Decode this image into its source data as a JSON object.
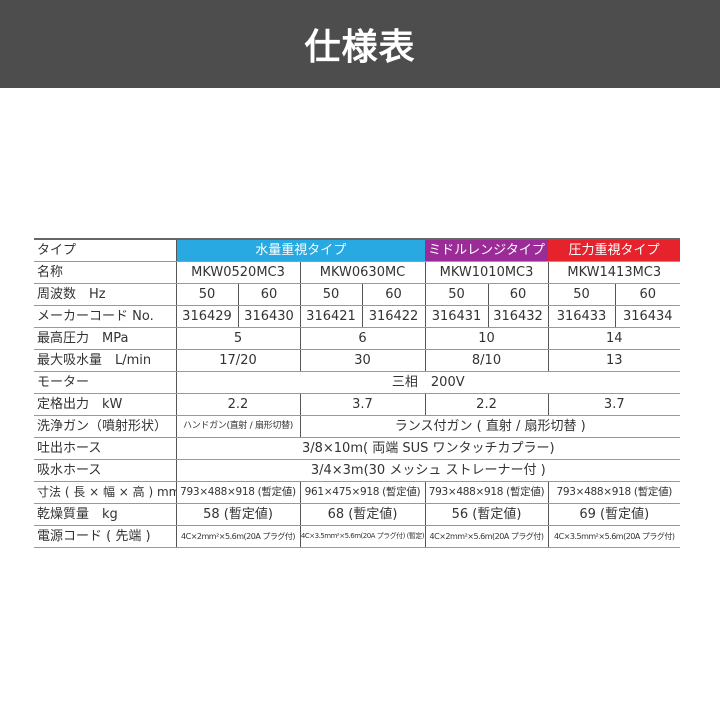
{
  "title": "仕様表",
  "colors": {
    "water": "#29a9e1",
    "middle": "#9a2b97",
    "pressure": "#e6232d",
    "header_bg": "#4d4d4d"
  },
  "rows": {
    "type": {
      "label": "タイプ",
      "water": "水量重視タイプ",
      "middle": "ミドルレンジタイプ",
      "pressure": "圧力重視タイプ"
    },
    "name": {
      "label": "名称",
      "values": [
        "MKW0520MC3",
        "MKW0630MC",
        "MKW1010MC3",
        "MKW1413MC3"
      ]
    },
    "freq": {
      "label": "周波数　Hz",
      "values": [
        "50",
        "60",
        "50",
        "60",
        "50",
        "60",
        "50",
        "60"
      ]
    },
    "code": {
      "label": "メーカーコード No.",
      "values": [
        "316429",
        "316430",
        "316421",
        "316422",
        "316431",
        "316432",
        "316433",
        "316434"
      ]
    },
    "pressure": {
      "label": "最高圧力　MPa",
      "values": [
        "5",
        "6",
        "10",
        "14"
      ]
    },
    "suction": {
      "label": "最大吸水量　L/min",
      "values": [
        "17/20",
        "30",
        "8/10",
        "13"
      ]
    },
    "motor": {
      "label": "モーター",
      "value": "三相　200V"
    },
    "output": {
      "label": "定格出力　kW",
      "values": [
        "2.2",
        "3.7",
        "2.2",
        "3.7"
      ]
    },
    "gun": {
      "label": "洗浄ガン（噴射形状）",
      "first": "ハンドガン(直射 / 扇形切替)",
      "rest": "ランス付ガン ( 直射 / 扇形切替 )"
    },
    "discharge": {
      "label": "吐出ホース",
      "value": "3/8×10m( 両端 SUS ワンタッチカプラー)"
    },
    "intake": {
      "label": "吸水ホース",
      "value": "3/4×3m(30 メッシュ ストレーナー付 )"
    },
    "size": {
      "label": "寸法 ( 長 × 幅 × 高 ) mm",
      "values": [
        "793×488×918 (暫定値)",
        "961×475×918 (暫定値)",
        "793×488×918 (暫定値)",
        "793×488×918 (暫定値)"
      ]
    },
    "weight": {
      "label": "乾燥質量　kg",
      "values": [
        "58 (暫定値)",
        "68 (暫定値)",
        "56 (暫定値)",
        "69 (暫定値)"
      ]
    },
    "cord": {
      "label": "電源コード ( 先端 )",
      "values": [
        "4C×2mm²×5.6m(20A プラグ付)",
        "4C×3.5mm²×5.6m(20A プラグ付) (暫定)",
        "4C×2mm²×5.6m(20A プラグ付)",
        "4C×3.5mm²×5.6m(20A プラグ付)"
      ]
    }
  }
}
